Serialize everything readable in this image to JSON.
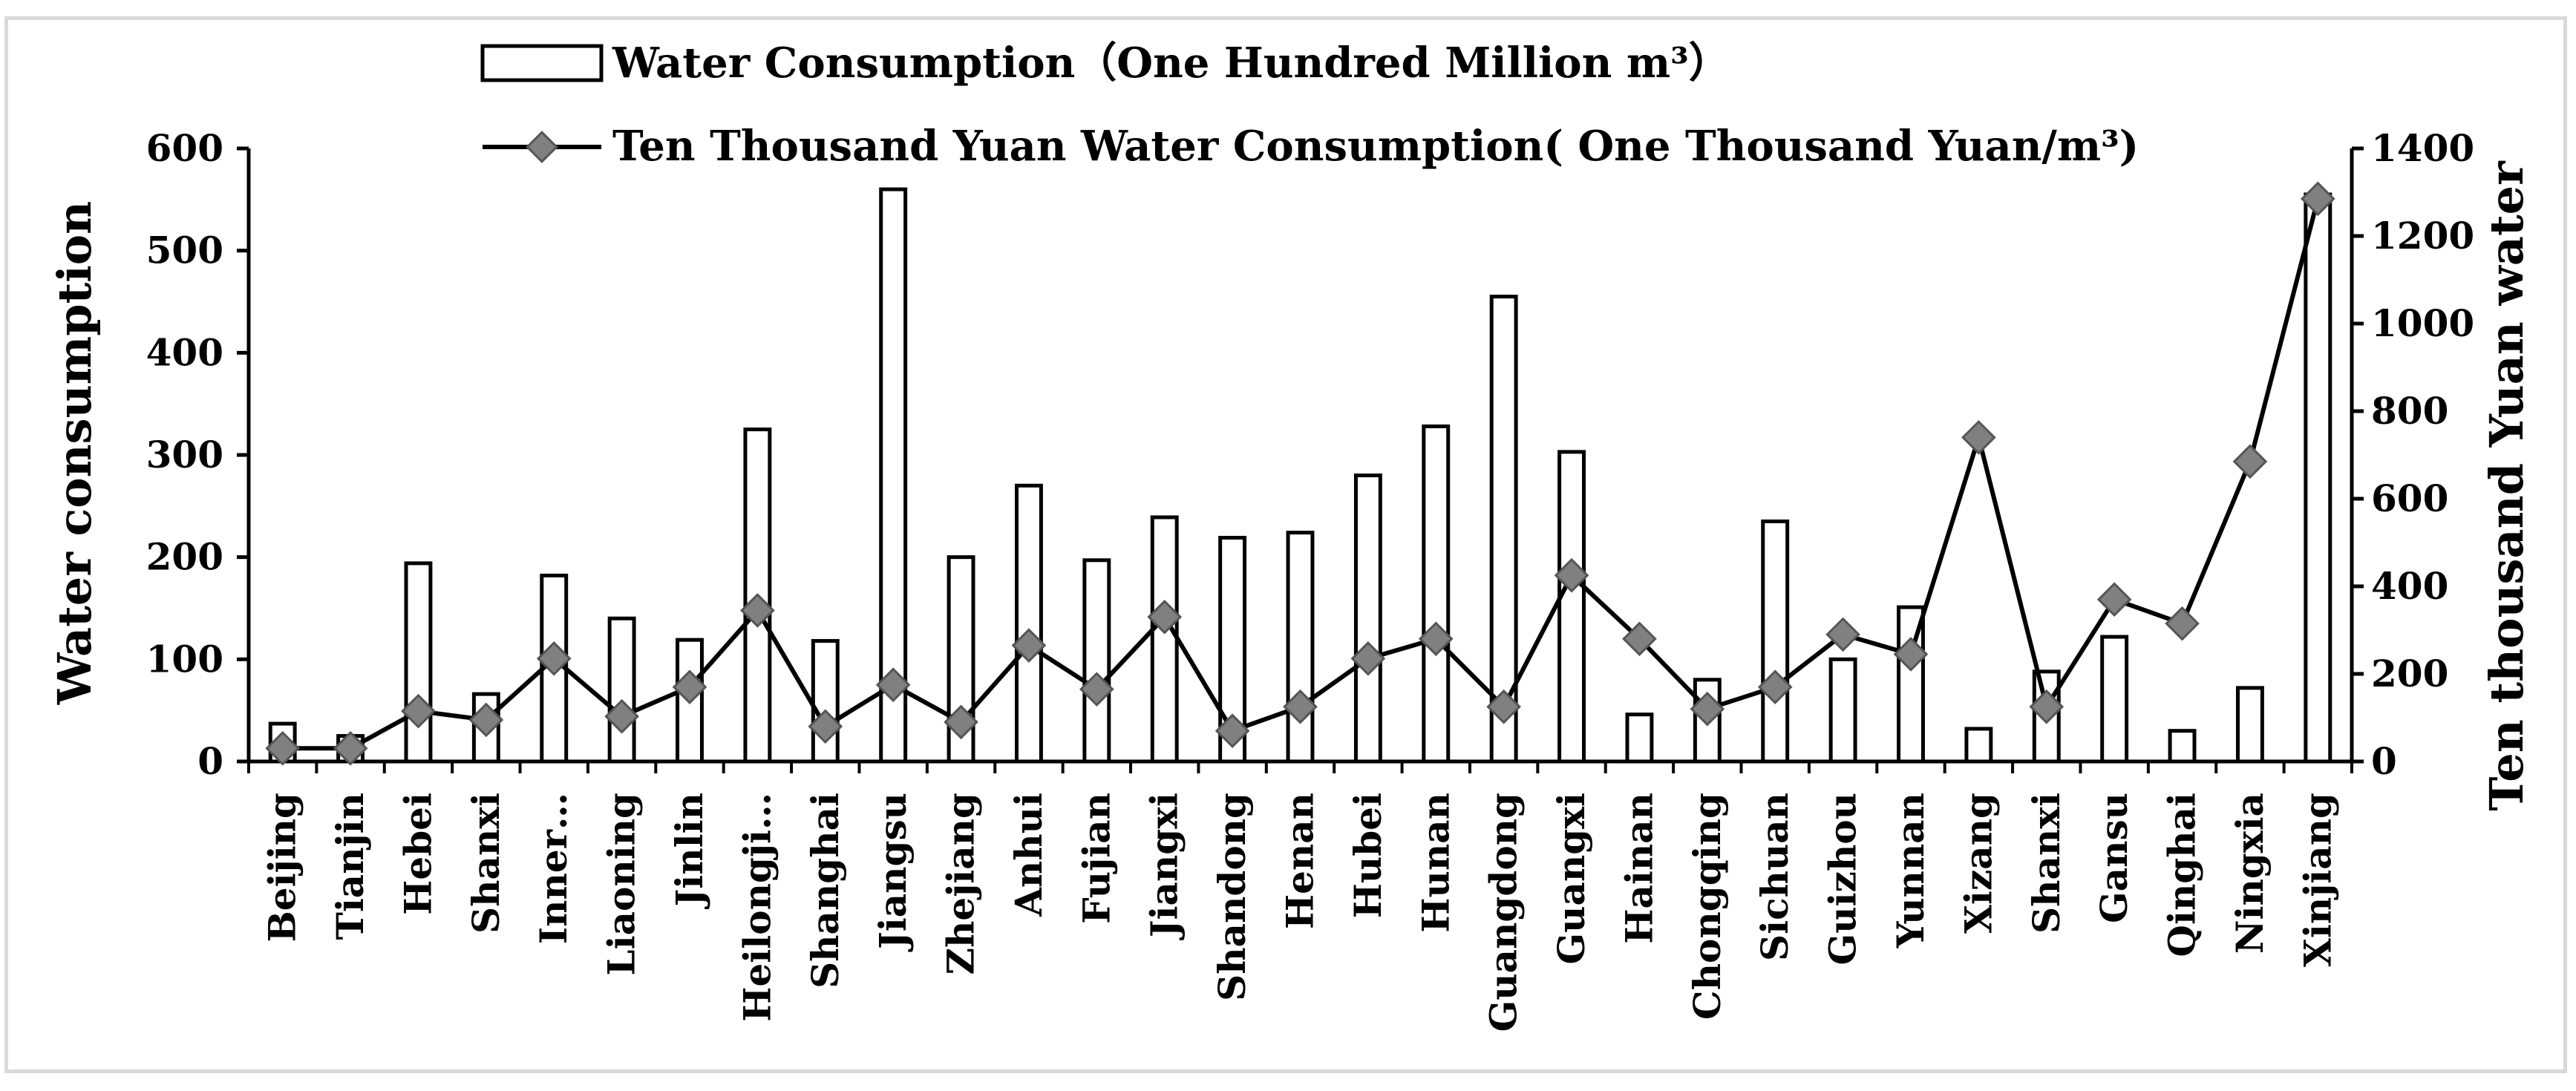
{
  "chart_data": {
    "type": "bar+line",
    "legend": {
      "bar_label": "Water Consumption（One Hundred Million m³）",
      "line_label": "Ten Thousand Yuan Water Consumption( One Thousand Yuan/m³)",
      "placement": "top-center"
    },
    "ylabel_left": "Water consumption",
    "ylabel_right": "Ten thousand Yuan water",
    "ylim_left": [
      0,
      600
    ],
    "yticks_left": [
      0,
      100,
      200,
      300,
      400,
      500,
      600
    ],
    "ylim_right": [
      0,
      1400
    ],
    "yticks_right": [
      0,
      200,
      400,
      600,
      800,
      1000,
      1200,
      1400
    ],
    "categories": [
      "Beijing",
      "Tianjin",
      "Hebei",
      "Shanxi",
      "Inner…",
      "Liaoning",
      "Jinlin",
      "Heilongji…",
      "Shanghai",
      "Jiangsu",
      "Zhejiang",
      "Anhui",
      "Fujian",
      "Jiangxi",
      "Shandong",
      "Henan",
      "Hubei",
      "Hunan",
      "Guangdong",
      "Guangxi",
      "Hainan",
      "Chongqing",
      "Sichuan",
      "Guizhou",
      "Yunnan",
      "Xizang",
      "Shanxi",
      "Gansu",
      "Qinghai",
      "Ningxia",
      "Xinjiang"
    ],
    "series": [
      {
        "name": "Water Consumption（One Hundred Million m³）",
        "type": "bar",
        "axis": "left",
        "values": [
          37,
          25,
          194,
          66,
          182,
          140,
          119,
          325,
          118,
          560,
          200,
          270,
          197,
          239,
          219,
          224,
          280,
          328,
          455,
          303,
          46,
          80,
          235,
          100,
          151,
          32,
          88,
          122,
          30,
          72,
          555
        ]
      },
      {
        "name": "Ten Thousand Yuan Water Consumption( One Thousand Yuan/m³)",
        "type": "line",
        "axis": "right",
        "values": [
          30,
          30,
          115,
          95,
          235,
          103,
          170,
          345,
          80,
          175,
          90,
          265,
          165,
          330,
          70,
          125,
          235,
          280,
          125,
          425,
          280,
          120,
          170,
          290,
          245,
          740,
          125,
          370,
          315,
          685,
          1285
        ]
      }
    ],
    "colors": {
      "bar_fill": "#ffffff",
      "bar_stroke": "#000000",
      "line": "#000000",
      "marker": "#808080"
    }
  }
}
